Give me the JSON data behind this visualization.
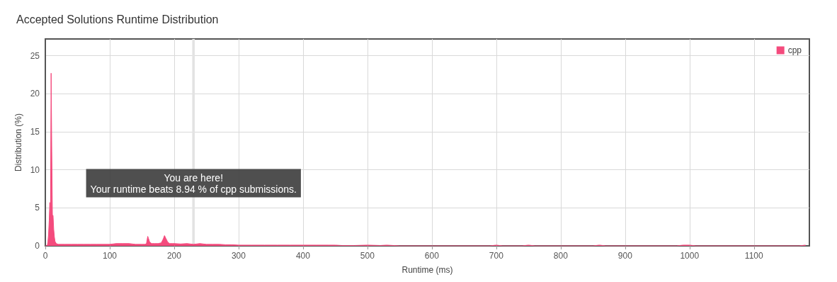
{
  "chart_data": {
    "type": "area",
    "title": "Accepted Solutions Runtime Distribution",
    "xlabel": "Runtime (ms)",
    "ylabel": "Distribution (%)",
    "x": [
      0,
      3,
      4,
      5,
      6,
      7,
      8,
      9,
      10,
      11,
      12,
      13,
      14,
      15,
      17,
      20,
      30,
      40,
      50,
      60,
      70,
      80,
      90,
      100,
      110,
      120,
      130,
      140,
      150,
      155,
      157,
      158,
      159,
      160,
      162,
      165,
      170,
      175,
      180,
      183,
      185,
      187,
      190,
      193,
      197,
      200,
      210,
      220,
      230,
      240,
      250,
      260,
      270,
      280,
      290,
      300,
      320,
      340,
      360,
      380,
      400,
      420,
      440,
      450,
      460,
      480,
      500,
      520,
      530,
      540,
      550,
      690,
      700,
      710,
      740,
      750,
      760,
      850,
      860,
      870,
      980,
      990,
      1000,
      1010,
      1170,
      1180
    ],
    "series": [
      {
        "name": "cpp",
        "color": "#f44b7d",
        "values": [
          0,
          0,
          0.5,
          1.5,
          3.3,
          5.7,
          3.5,
          22.7,
          12.4,
          4.0,
          4.0,
          2.2,
          1.2,
          0.6,
          0.3,
          0.2,
          0.2,
          0.2,
          0.2,
          0.2,
          0.2,
          0.2,
          0.2,
          0.2,
          0.3,
          0.3,
          0.3,
          0.2,
          0.2,
          0.2,
          0.3,
          0.8,
          1.25,
          1.0,
          0.5,
          0.3,
          0.3,
          0.3,
          0.4,
          0.9,
          1.35,
          1.0,
          0.5,
          0.3,
          0.3,
          0.3,
          0.25,
          0.3,
          0.2,
          0.3,
          0.2,
          0.2,
          0.2,
          0.15,
          0.15,
          0.1,
          0.1,
          0.1,
          0.1,
          0.1,
          0.1,
          0.1,
          0.1,
          0.1,
          0.05,
          0.05,
          0.1,
          0.05,
          0.1,
          0.05,
          0,
          0,
          0.1,
          0,
          0,
          0.1,
          0,
          0,
          0.1,
          0,
          0,
          0.1,
          0.1,
          0,
          0,
          0.1
        ]
      }
    ],
    "xlim": [
      0,
      1186
    ],
    "xticks": [
      0,
      100,
      200,
      300,
      400,
      500,
      600,
      700,
      800,
      900,
      1000,
      1100
    ],
    "ylim": [
      0,
      27.2
    ],
    "yticks": [
      0,
      5,
      10,
      15,
      20,
      25
    ],
    "grid": true,
    "legend": "top right",
    "marker": "none",
    "bands": [
      {
        "axis": "x",
        "from": 228,
        "to": 232,
        "color": "#e3e3e3"
      }
    ],
    "annotations": [
      {
        "text": "You are here!\nYour runtime beats 8.94 % of cpp submissions.",
        "x": 230,
        "y": 6
      }
    ]
  }
}
